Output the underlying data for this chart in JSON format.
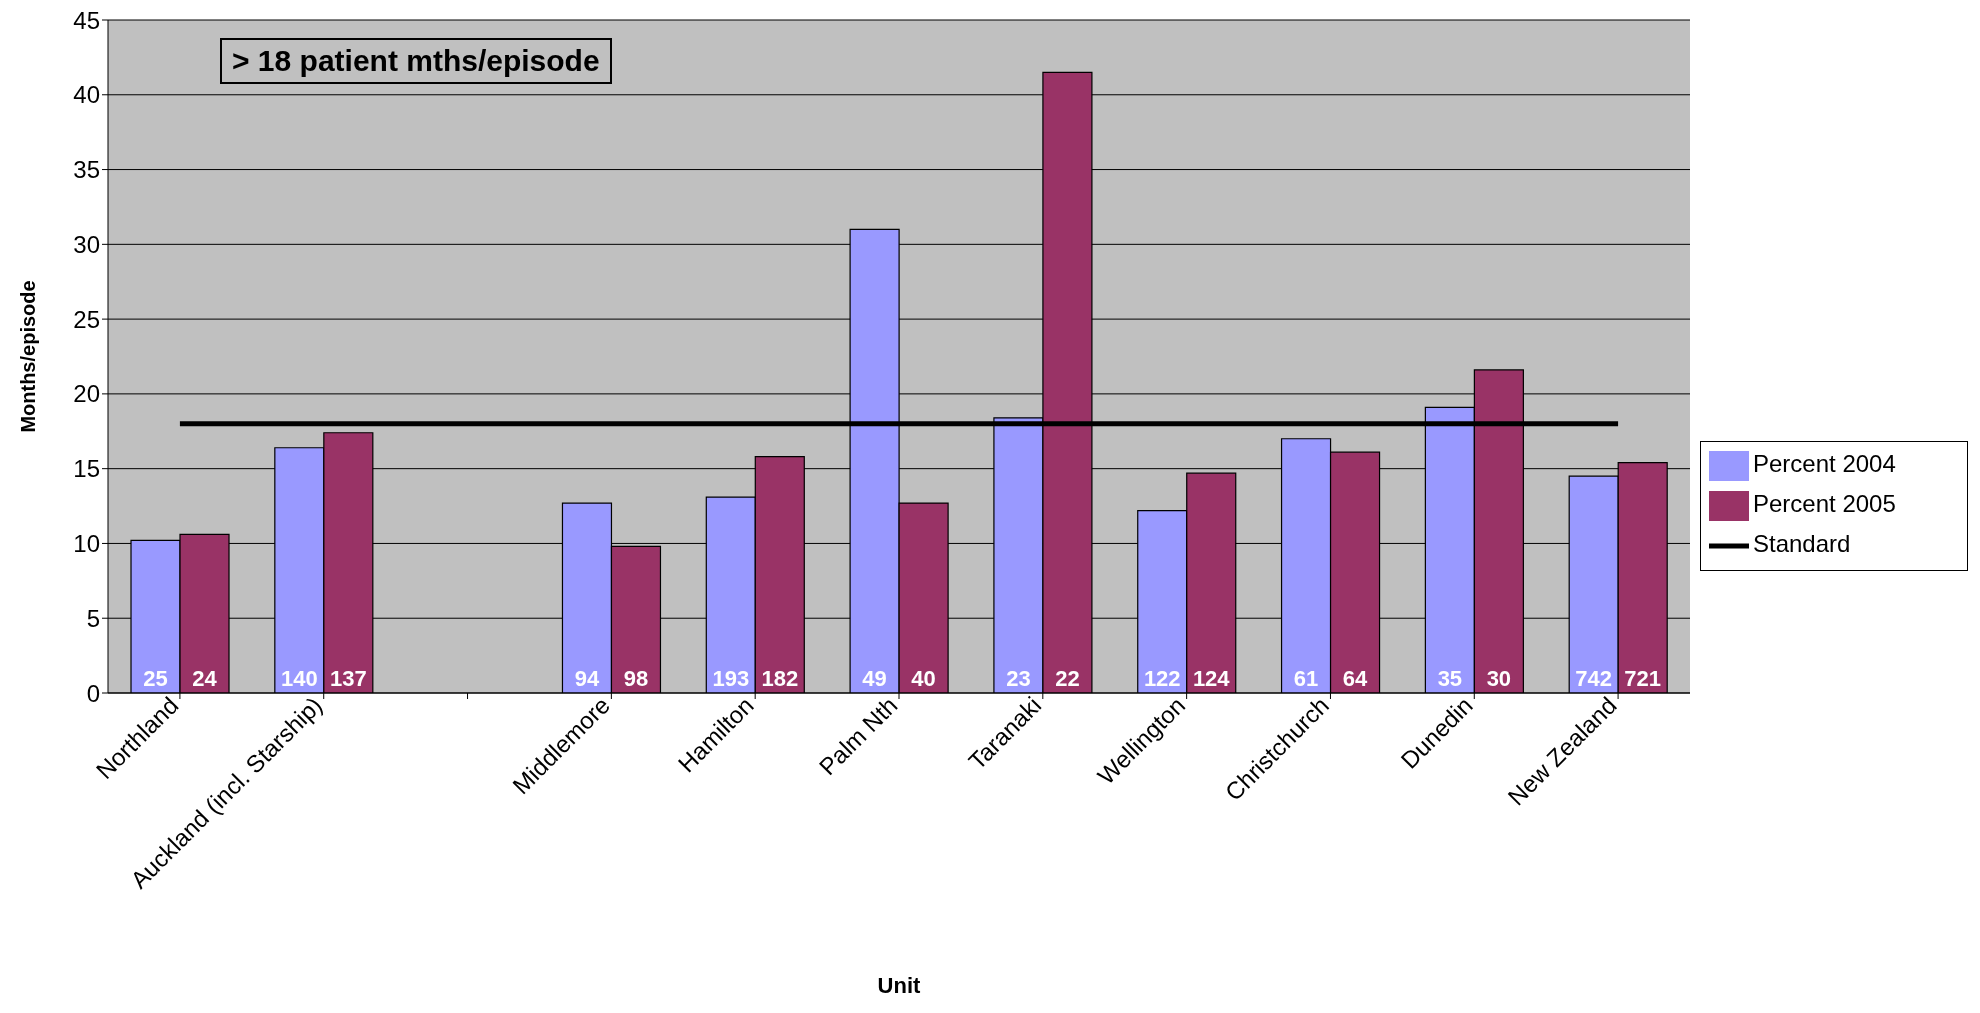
{
  "chart_data": {
    "type": "bar",
    "title": "> 18 patient mths/episode",
    "xlabel": "Unit",
    "ylabel": "Months/episode",
    "categories": [
      "Northland",
      "Auckland (incl. Starship)",
      null,
      "Middlemore",
      "Hamilton",
      "Palm Nth",
      "Taranaki",
      "Wellington",
      "Christchurch",
      "Dunedin",
      "New Zealand"
    ],
    "series": [
      {
        "name": "Percent 2004",
        "color": "#9999ff",
        "values": [
          10.2,
          16.4,
          null,
          12.7,
          13.1,
          31.0,
          18.4,
          12.2,
          17.0,
          19.1,
          14.5
        ]
      },
      {
        "name": "Percent 2005",
        "color": "#993366",
        "values": [
          10.6,
          17.4,
          null,
          9.8,
          15.8,
          12.7,
          41.5,
          14.7,
          16.1,
          21.6,
          15.4
        ]
      },
      {
        "name": "Standard",
        "type": "line",
        "color": "#000000",
        "marker": "none",
        "line_style": "solid",
        "values": [
          18,
          18,
          18,
          18,
          18,
          18,
          18,
          18,
          18,
          18,
          18
        ]
      }
    ],
    "annotations": [
      {
        "text": "25",
        "x": "Northland",
        "y": 1
      },
      {
        "text": "24",
        "x": "Northland",
        "y": 1
      },
      {
        "text": "140",
        "x": "Auckland (incl. Starship)",
        "y": 1
      },
      {
        "text": "137",
        "x": "Auckland (incl. Starship)",
        "y": 1
      },
      {
        "text": "94",
        "x": "Middlemore",
        "y": 1
      },
      {
        "text": "98",
        "x": "Middlemore",
        "y": 1
      },
      {
        "text": "193",
        "x": "Hamilton",
        "y": 1
      },
      {
        "text": "182",
        "x": "Hamilton",
        "y": 1
      },
      {
        "text": "49",
        "x": "Palm Nth",
        "y": 1
      },
      {
        "text": "40",
        "x": "Palm Nth",
        "y": 1
      },
      {
        "text": "23",
        "x": "Taranaki",
        "y": 1
      },
      {
        "text": "22",
        "x": "Taranaki",
        "y": 1
      },
      {
        "text": "122",
        "x": "Wellington",
        "y": 1
      },
      {
        "text": "124",
        "x": "Wellington",
        "y": 1
      },
      {
        "text": "61",
        "x": "Christchurch",
        "y": 1
      },
      {
        "text": "64",
        "x": "Christchurch",
        "y": 1
      },
      {
        "text": "35",
        "x": "Dunedin",
        "y": 1
      },
      {
        "text": "30",
        "x": "Dunedin",
        "y": 1
      },
      {
        "text": "742",
        "x": "New Zealand",
        "y": 1
      },
      {
        "text": "721",
        "x": "New Zealand",
        "y": 1
      }
    ],
    "ylim": [
      0,
      45
    ],
    "yticks": [
      0,
      5,
      10,
      15,
      20,
      25,
      30,
      35,
      40,
      45
    ],
    "grid": "y",
    "legend": "right"
  }
}
